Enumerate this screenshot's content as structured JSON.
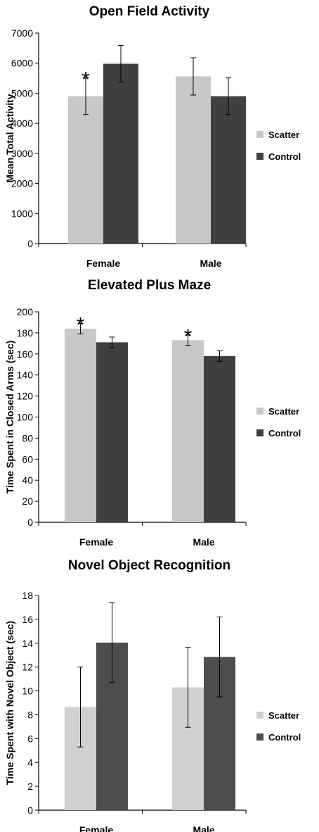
{
  "chart_data": [
    {
      "type": "bar",
      "title": "Open Field Activity",
      "xlabel": "",
      "ylabel": "Mean Total Activity",
      "categories": [
        "Female",
        "Male"
      ],
      "series": [
        {
          "name": "Scatter",
          "color": "#c8c8c8",
          "values": [
            4900,
            5560
          ],
          "errors": [
            610,
            620
          ]
        },
        {
          "name": "Control",
          "color": "#404040",
          "values": [
            5980,
            4900
          ],
          "errors": [
            610,
            610
          ]
        }
      ],
      "ylim": [
        0,
        7000
      ],
      "yticks": [
        0,
        1000,
        2000,
        3000,
        4000,
        5000,
        6000,
        7000
      ],
      "ytick_labels": [
        "0",
        "1000",
        "2000",
        "3000",
        "4000",
        "5000",
        "6000",
        "7000"
      ],
      "annotations": [
        {
          "text": "*",
          "category": "Female",
          "series": "Scatter"
        }
      ],
      "legend": "right",
      "grid": false
    },
    {
      "type": "bar",
      "title": "Elevated Plus Maze",
      "xlabel": "",
      "ylabel": "Time  Spent in Closed Arms (sec)",
      "categories": [
        "Female",
        "Male"
      ],
      "series": [
        {
          "name": "Scatter",
          "color": "#c8c8c8",
          "values": [
            184,
            173
          ],
          "errors": [
            5,
            5
          ]
        },
        {
          "name": "Control",
          "color": "#404040",
          "values": [
            171,
            158
          ],
          "errors": [
            5,
            5
          ]
        }
      ],
      "ylim": [
        0,
        200
      ],
      "yticks": [
        0,
        20,
        40,
        60,
        80,
        100,
        120,
        140,
        160,
        180,
        200
      ],
      "ytick_labels": [
        "0",
        "20",
        "40",
        "60",
        "80",
        "100",
        "120",
        "140",
        "160",
        "180",
        "200"
      ],
      "annotations": [
        {
          "text": "*",
          "category": "Female",
          "series": "Scatter"
        },
        {
          "text": "*",
          "category": "Male",
          "series": "Scatter"
        }
      ],
      "legend": "right",
      "grid": false
    },
    {
      "type": "bar",
      "title": "Novel Object Recognition",
      "xlabel": "",
      "ylabel": "Time Spent with Novel Object (sec)",
      "categories": [
        "Female",
        "Male"
      ],
      "series": [
        {
          "name": "Scatter",
          "color": "#d0d0d0",
          "values": [
            8.65,
            10.3
          ],
          "errors": [
            3.35,
            3.35
          ]
        },
        {
          "name": "Control",
          "color": "#4d4d4d",
          "values": [
            14.05,
            12.85
          ],
          "errors": [
            3.35,
            3.35
          ]
        }
      ],
      "ylim": [
        0,
        18
      ],
      "yticks": [
        0,
        2,
        4,
        6,
        8,
        10,
        12,
        14,
        16,
        18
      ],
      "ytick_labels": [
        "0",
        "2",
        "4",
        "6",
        "8",
        "10",
        "12",
        "14",
        "16",
        "18"
      ],
      "annotations": [],
      "legend": "right",
      "grid": false
    }
  ]
}
